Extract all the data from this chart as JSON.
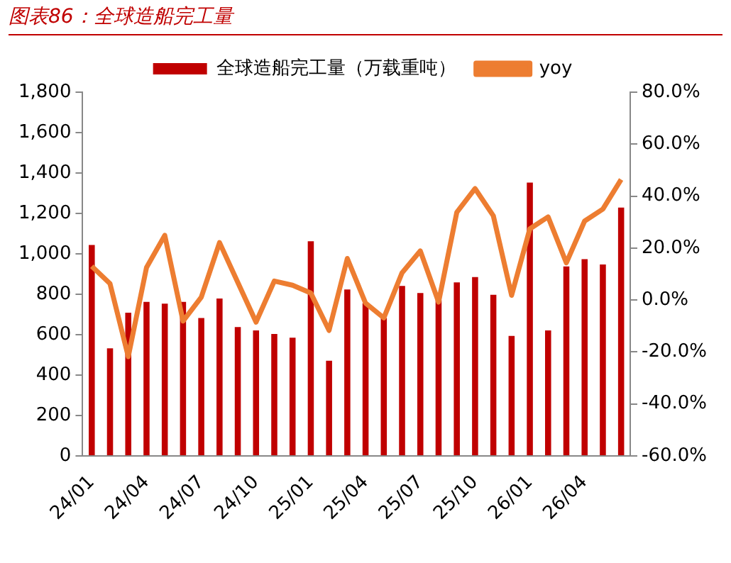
{
  "chart_data": {
    "type": "bar",
    "title": "图表86：全球造船完工量",
    "categories": [
      "24/01",
      null,
      null,
      "24/04",
      null,
      null,
      "24/07",
      null,
      null,
      "24/10",
      null,
      null,
      "25/01",
      null,
      null,
      "25/04",
      null,
      null,
      "25/07",
      null,
      null,
      "25/10",
      null,
      null,
      "26/01",
      null,
      null,
      "26/04",
      null,
      null
    ],
    "series": [
      {
        "name": "全球造船完工量（万载重吨）",
        "color": "#c00000",
        "values": [
          1044,
          532,
          709,
          762,
          753,
          762,
          682,
          779,
          638,
          621,
          603,
          585,
          1062,
          471,
          824,
          756,
          682,
          841,
          806,
          771,
          859,
          885,
          797,
          594,
          1353,
          621,
          938,
          974,
          947,
          1229
        ]
      },
      {
        "name": "yoy",
        "type": "line",
        "axis": "y2",
        "color": "#ed7d31",
        "values": [
          13.0,
          6.3,
          -21.8,
          12.5,
          24.9,
          -8.1,
          1.1,
          22.1,
          6.8,
          -8.5,
          7.3,
          5.7,
          2.7,
          -11.7,
          16.0,
          -1.2,
          -6.9,
          10.5,
          18.9,
          -0.8,
          33.8,
          42.9,
          32.4,
          1.8,
          27.4,
          32.0,
          14.3,
          30.4,
          35.0,
          46.4
        ]
      }
    ],
    "ylim": [
      0,
      1800
    ],
    "yticks": [
      0,
      {
        "value": 200,
        "label": "200"
      },
      {
        "value": 400,
        "label": "400"
      },
      {
        "value": 600,
        "label": "600"
      },
      {
        "value": 800,
        "label": "800"
      },
      {
        "value": 1000,
        "label": "1,000"
      },
      {
        "value": 1200,
        "label": "1,200"
      },
      {
        "value": 1400,
        "label": "1,400"
      },
      {
        "value": 1600,
        "label": "1,600"
      },
      {
        "value": 1800,
        "label": "1,800"
      }
    ],
    "y2lim": [
      -60,
      80
    ],
    "y2ticks": [
      {
        "value": -60,
        "label": "-60.0%"
      },
      {
        "value": -40,
        "label": "-40.0%"
      },
      {
        "value": -20,
        "label": "-20.0%"
      },
      {
        "value": 0,
        "label": "0.0%"
      },
      {
        "value": 20,
        "label": "20.0%"
      },
      {
        "value": 40,
        "label": "40.0%"
      },
      {
        "value": 60,
        "label": "60.0%"
      },
      {
        "value": 80,
        "label": "80.0%"
      }
    ],
    "grid": false,
    "legend": "top",
    "marker": "none",
    "line_style": "solid"
  }
}
